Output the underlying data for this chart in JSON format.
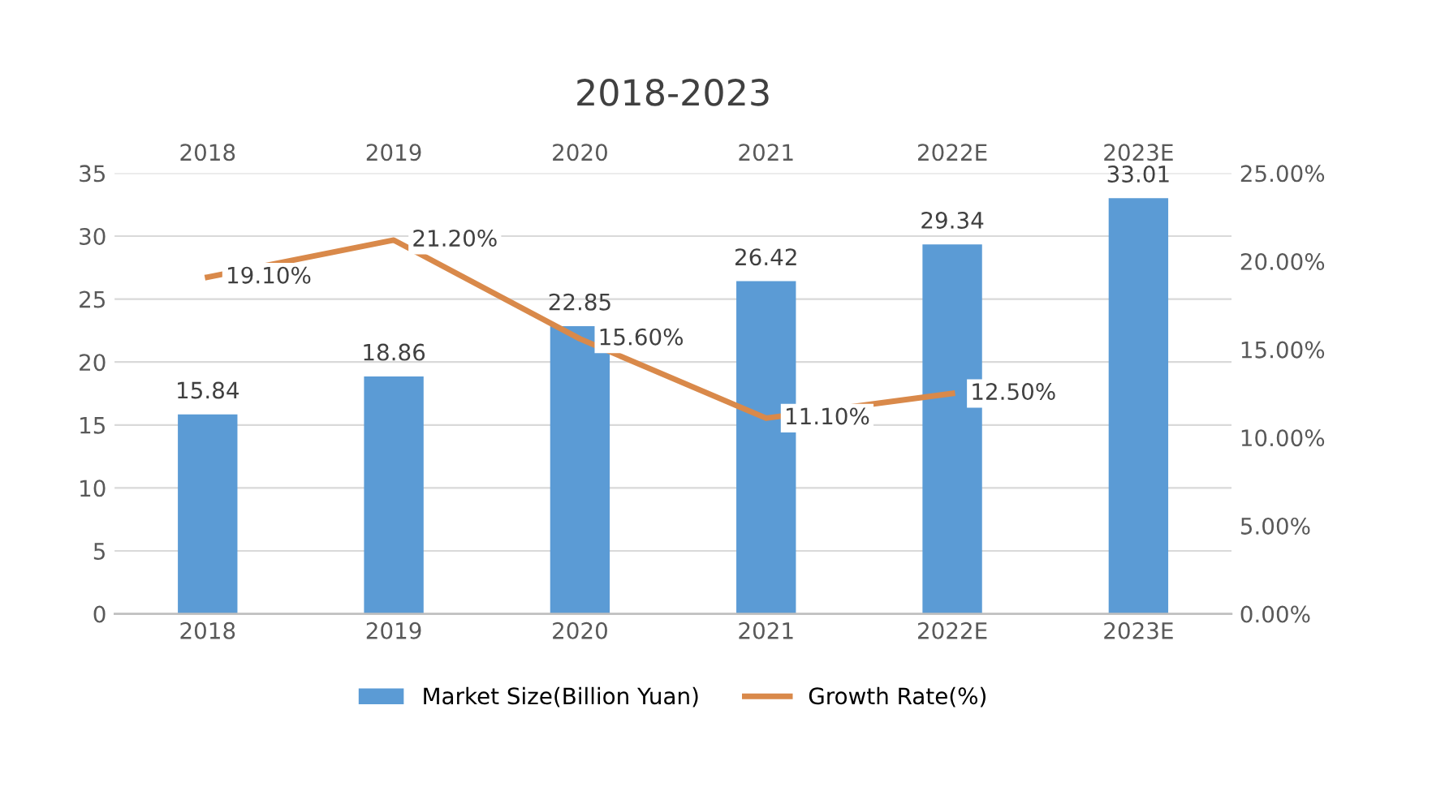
{
  "chart_data": {
    "type": "bar",
    "title": "2018-2023",
    "categories": [
      "2018",
      "2019",
      "2020",
      "2021",
      "2022E",
      "2023E"
    ],
    "series": [
      {
        "name": "Market Size(Billion Yuan)",
        "color": "#5b9bd5",
        "values": [
          15.84,
          18.86,
          22.85,
          26.42,
          29.34,
          33.01
        ],
        "value_labels": [
          "15.84",
          "18.86",
          "22.85",
          "26.42",
          "29.34",
          "33.01"
        ]
      },
      {
        "name": "Growth Rate(%)",
        "type": "line",
        "axis": "y2",
        "color": "#d9894a",
        "values": [
          19.1,
          21.2,
          15.6,
          11.1,
          12.5,
          null
        ],
        "value_labels": [
          "19.10%",
          "21.20%",
          "15.60%",
          "11.10%",
          "12.50%",
          null
        ]
      }
    ],
    "ylim": [
      0,
      35
    ],
    "yticks": [
      0,
      5,
      10,
      15,
      20,
      25,
      30,
      35
    ],
    "y2lim": [
      0,
      25
    ],
    "y2ticks": [
      {
        "value": 0,
        "label": "0.00%"
      },
      {
        "value": 5,
        "label": "5.00%"
      },
      {
        "value": 10,
        "label": "10.00%"
      },
      {
        "value": 15,
        "label": "15.00%"
      },
      {
        "value": 20,
        "label": "20.00%"
      },
      {
        "value": 25,
        "label": "25.00%"
      }
    ],
    "grid": "y",
    "legend": "bottom",
    "marker": "none",
    "line_style": "solid"
  }
}
